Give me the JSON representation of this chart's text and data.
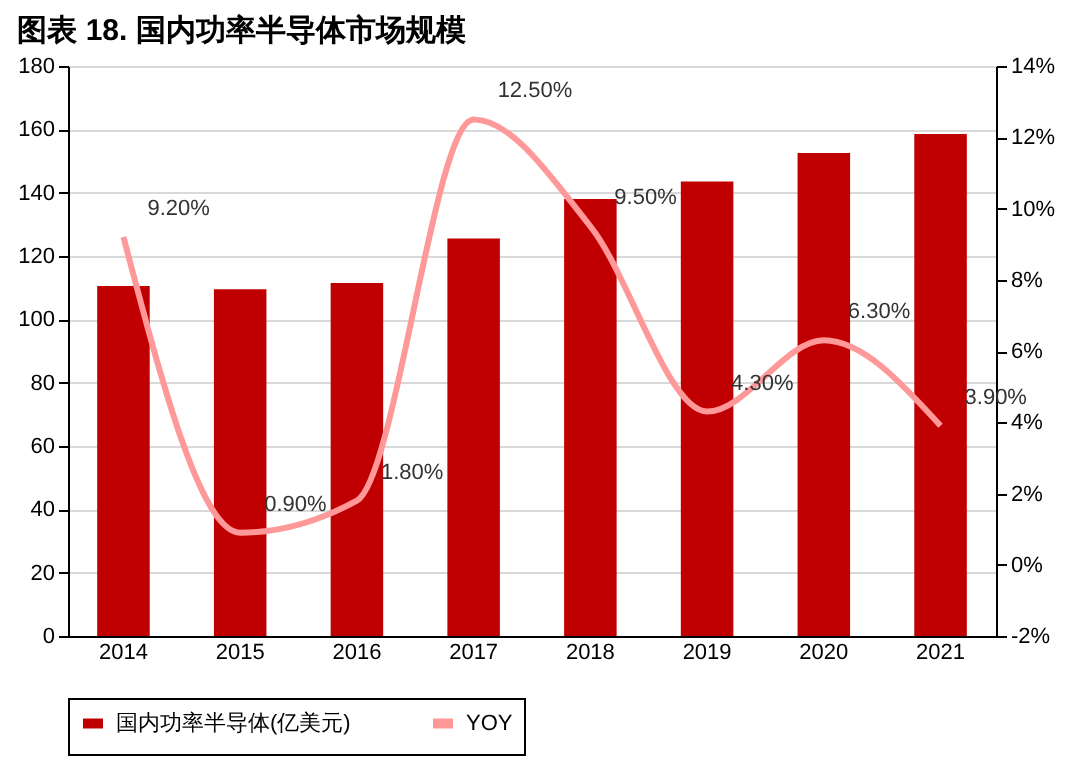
{
  "chart_data": {
    "type": "bar",
    "title": "图表 18.    国内功率半导体市场规模",
    "categories": [
      "2014",
      "2015",
      "2016",
      "2017",
      "2018",
      "2019",
      "2020",
      "2021"
    ],
    "series": [
      {
        "name": "国内功率半导体(亿美元)",
        "color": "#c00000",
        "values": [
          110.5,
          109.5,
          111.5,
          125.5,
          138,
          143.5,
          152.5,
          158.5
        ]
      },
      {
        "name": "YOY",
        "type": "line",
        "axis": "y2",
        "color": "#ff9999",
        "values": [
          9.2,
          0.9,
          1.8,
          12.5,
          9.5,
          4.3,
          6.3,
          3.9
        ],
        "value_labels": [
          "9.20%",
          "0.90%",
          "1.80%",
          "12.50%",
          "9.50%",
          "4.30%",
          "6.30%",
          "3.90%"
        ]
      }
    ],
    "ylim": [
      0,
      180
    ],
    "yticks": [
      0,
      20,
      40,
      60,
      80,
      100,
      120,
      140,
      160,
      180
    ],
    "y2lim": [
      -2,
      14
    ],
    "y2ticks": [
      {
        "value": -2,
        "label": "-2%"
      },
      {
        "value": 0,
        "label": "0%"
      },
      {
        "value": 2,
        "label": "2%"
      },
      {
        "value": 4,
        "label": "4%"
      },
      {
        "value": 6,
        "label": "6%"
      },
      {
        "value": 8,
        "label": "8%"
      },
      {
        "value": 10,
        "label": "10%"
      },
      {
        "value": 12,
        "label": "12%"
      },
      {
        "value": 14,
        "label": "14%"
      }
    ],
    "grid": "y",
    "legend": "bottom"
  }
}
